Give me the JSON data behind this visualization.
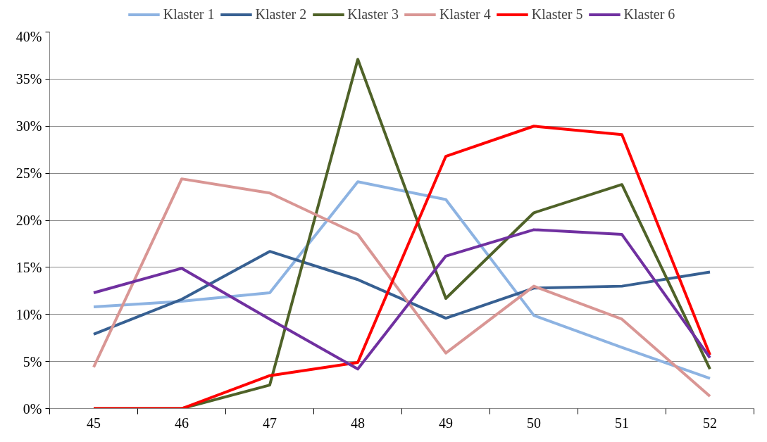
{
  "chart_data": {
    "type": "line",
    "categories": [
      "45",
      "46",
      "47",
      "48",
      "49",
      "50",
      "51",
      "52"
    ],
    "series": [
      {
        "name": "Klaster 1",
        "color": "#8db3e2",
        "values": [
          10.8,
          11.4,
          12.3,
          24.1,
          22.2,
          9.9,
          6.5,
          3.2
        ]
      },
      {
        "name": "Klaster 2",
        "color": "#376092",
        "values": [
          7.9,
          11.6,
          16.7,
          13.7,
          9.6,
          12.8,
          13.0,
          14.5
        ]
      },
      {
        "name": "Klaster 3",
        "color": "#4f6228",
        "values": [
          0,
          0,
          2.5,
          37.1,
          11.7,
          20.8,
          23.8,
          4.2
        ]
      },
      {
        "name": "Klaster 4",
        "color": "#d99694",
        "values": [
          4.4,
          24.4,
          22.9,
          18.5,
          5.9,
          13.0,
          9.5,
          1.3
        ]
      },
      {
        "name": "Klaster 5",
        "color": "#ff0000",
        "values": [
          0,
          0,
          3.5,
          4.9,
          26.8,
          30.0,
          29.1,
          5.7
        ]
      },
      {
        "name": "Klaster 6",
        "color": "#7030a0",
        "values": [
          12.3,
          14.9,
          9.5,
          4.2,
          16.2,
          19.0,
          18.5,
          5.4
        ]
      }
    ],
    "ylim": [
      0,
      40
    ],
    "yticks": [
      {
        "value": 0,
        "label": "0%"
      },
      {
        "value": 5,
        "label": "5%"
      },
      {
        "value": 10,
        "label": "10%"
      },
      {
        "value": 15,
        "label": "15%"
      },
      {
        "value": 20,
        "label": "20%"
      },
      {
        "value": 25,
        "label": "25%"
      },
      {
        "value": 30,
        "label": "30%"
      },
      {
        "value": 35,
        "label": "35%"
      },
      {
        "value": 40,
        "label": "40%"
      }
    ],
    "grid": "y",
    "legend": "top",
    "marker": "none",
    "line_style": "solid"
  }
}
